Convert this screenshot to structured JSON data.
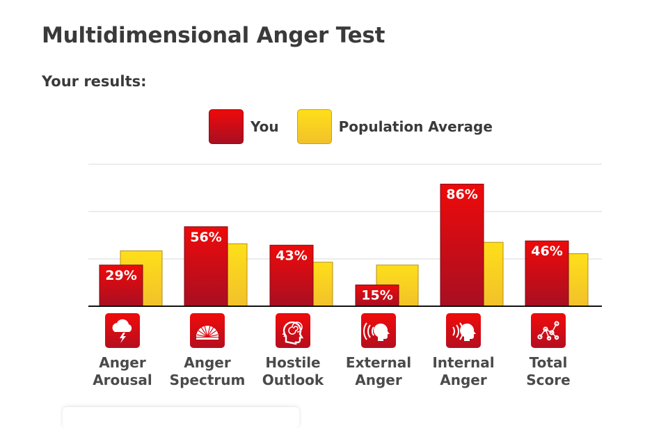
{
  "page": {
    "title": "Multidimensional Anger Test",
    "subtitle": "Your results:"
  },
  "legend": {
    "you_label": "You",
    "avg_label": "Population Average"
  },
  "colors": {
    "you_top": "#ee0a0a",
    "you_bottom": "#a80f22",
    "avg_top": "#fedf1a",
    "avg_bottom": "#f2c12a",
    "icon_bg": "#e00d14"
  },
  "chart_data": {
    "type": "bar",
    "title": "",
    "xlabel": "",
    "ylabel": "",
    "ylim": [
      0,
      100
    ],
    "grid": true,
    "legend_position": "top",
    "categories": [
      "Anger\nArousal",
      "Anger\nSpectrum",
      "Hostile\nOutlook",
      "External\nAnger",
      "Internal\nAnger",
      "Total\nScore"
    ],
    "icons": [
      "storm-cloud-icon",
      "spectrum-fan-icon",
      "head-spiral-icon",
      "speaking-head-outward-icon",
      "listening-head-inward-icon",
      "connected-dots-icon"
    ],
    "series": [
      {
        "name": "You",
        "values": [
          29,
          56,
          43,
          15,
          86,
          46
        ],
        "labels": [
          "29%",
          "56%",
          "43%",
          "15%",
          "86%",
          "46%"
        ]
      },
      {
        "name": "Population Average",
        "values": [
          39,
          44,
          31,
          29,
          45,
          37
        ]
      }
    ]
  }
}
